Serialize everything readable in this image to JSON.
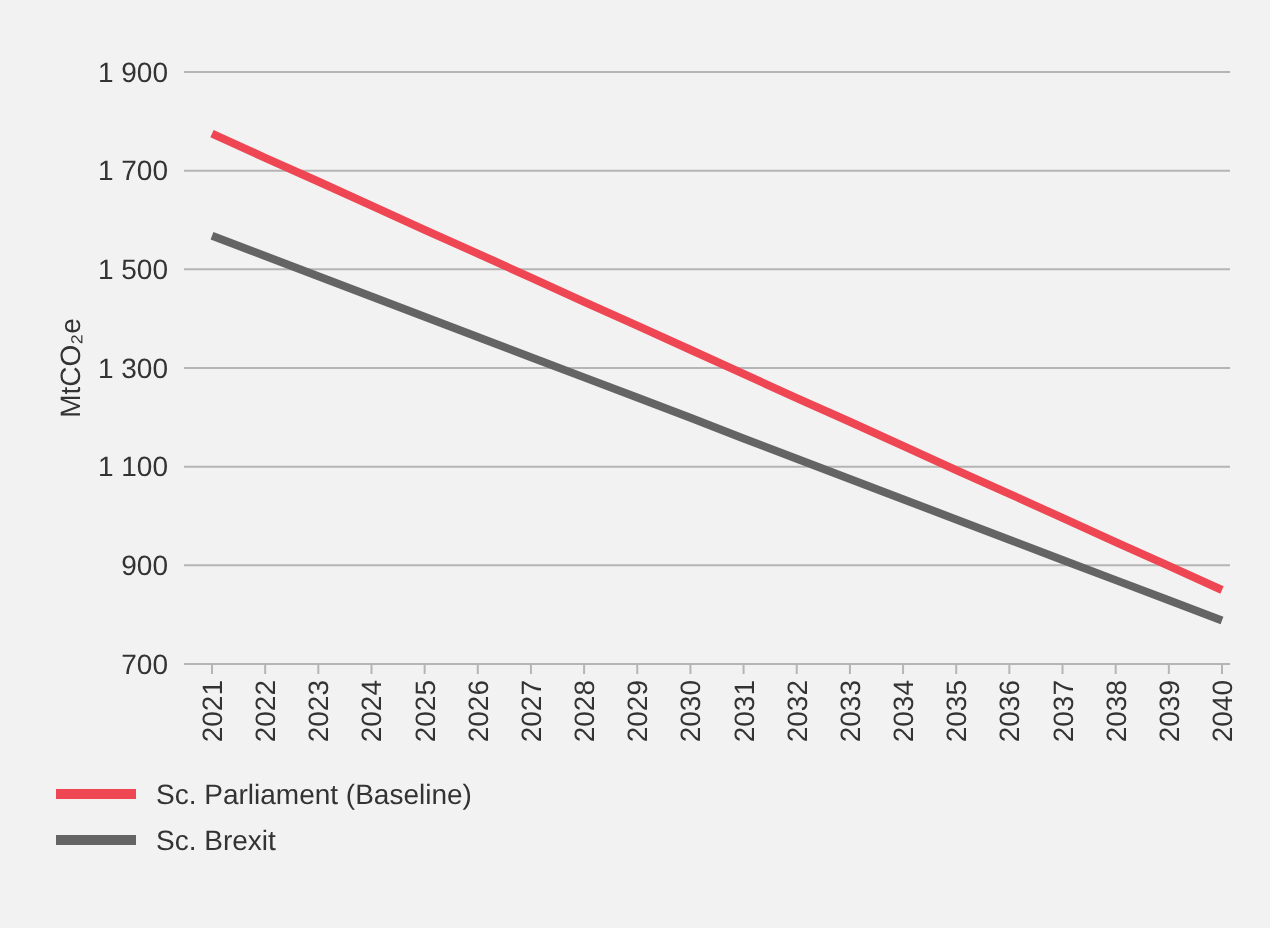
{
  "chart_data": {
    "type": "line",
    "ylabel": "MtCO₂e",
    "categories": [
      "2021",
      "2022",
      "2023",
      "2024",
      "2025",
      "2026",
      "2027",
      "2028",
      "2029",
      "2030",
      "2031",
      "2032",
      "2033",
      "2034",
      "2035",
      "2036",
      "2037",
      "2038",
      "2039",
      "2040"
    ],
    "series": [
      {
        "name": "Sc. Parliament (Baseline)",
        "color": "#ef4653",
        "values": [
          1775,
          1726,
          1678,
          1629,
          1580,
          1532,
          1483,
          1434,
          1386,
          1337,
          1288,
          1239,
          1191,
          1142,
          1093,
          1045,
          996,
          947,
          899,
          850
        ]
      },
      {
        "name": "Sc. Brexit",
        "color": "#646464",
        "values": [
          1568,
          1527,
          1486,
          1445,
          1404,
          1363,
          1322,
          1281,
          1240,
          1199,
          1157,
          1116,
          1075,
          1034,
          993,
          952,
          911,
          870,
          829,
          788
        ]
      }
    ],
    "ylim": [
      700,
      1900
    ],
    "yticks": [
      {
        "value": 700,
        "label": "700"
      },
      {
        "value": 900,
        "label": "900"
      },
      {
        "value": 1100,
        "label": "1 100"
      },
      {
        "value": 1300,
        "label": "1 300"
      },
      {
        "value": 1500,
        "label": "1 500"
      },
      {
        "value": 1700,
        "label": "1 700"
      },
      {
        "value": 1900,
        "label": "1 900"
      }
    ],
    "grid": "y",
    "legend": "bottom left",
    "marker": "none",
    "line_style": "solid"
  }
}
